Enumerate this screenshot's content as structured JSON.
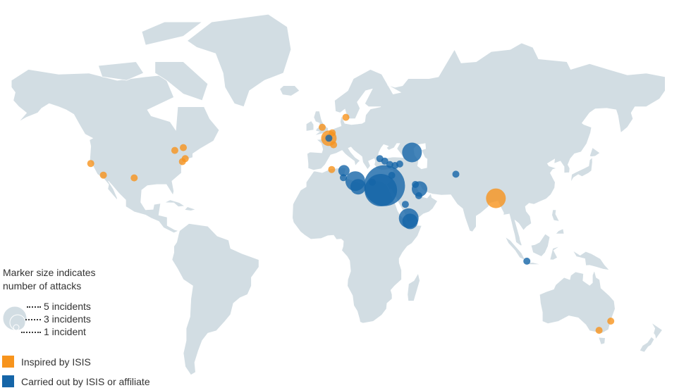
{
  "colors": {
    "land": "#d2dde3",
    "border": "#ffffff",
    "inspired": "#f7941d",
    "carried_out": "#1565a8"
  },
  "legend": {
    "size_title_line1": "Marker size indicates",
    "size_title_line2": "number of attacks",
    "sizes": [
      {
        "incidents": 5,
        "label": "5 incidents"
      },
      {
        "incidents": 3,
        "label": "3 incidents"
      },
      {
        "incidents": 1,
        "label": "1 incident"
      }
    ],
    "types": [
      {
        "key": "inspired",
        "label": "Inspired by ISIS"
      },
      {
        "key": "carried_out",
        "label": "Carried out by ISIS or affiliate"
      }
    ]
  },
  "markers": [
    {
      "type": "inspired",
      "lat": 39.0,
      "lon": -124.0,
      "incidents": 1
    },
    {
      "type": "inspired",
      "lat": 34.1,
      "lon": -117.3,
      "incidents": 1
    },
    {
      "type": "inspired",
      "lat": 32.9,
      "lon": -101.0,
      "incidents": 1
    },
    {
      "type": "inspired",
      "lat": 44.3,
      "lon": -79.5,
      "incidents": 1
    },
    {
      "type": "inspired",
      "lat": 45.4,
      "lon": -75.0,
      "incidents": 1
    },
    {
      "type": "inspired",
      "lat": 41.0,
      "lon": -74.0,
      "incidents": 1
    },
    {
      "type": "inspired",
      "lat": 39.8,
      "lon": -75.5,
      "incidents": 1
    },
    {
      "type": "inspired",
      "lat": 53.0,
      "lon": -1.5,
      "incidents": 1
    },
    {
      "type": "inspired",
      "lat": 56.5,
      "lon": 11.0,
      "incidents": 1
    },
    {
      "type": "inspired",
      "lat": 51.0,
      "lon": 3.8,
      "incidents": 1
    },
    {
      "type": "inspired",
      "lat": 49.0,
      "lon": 2.0,
      "incidents": 3
    },
    {
      "type": "inspired",
      "lat": 46.5,
      "lon": 4.5,
      "incidents": 1
    },
    {
      "type": "inspired",
      "lat": 36.5,
      "lon": 3.5,
      "incidents": 1
    },
    {
      "type": "inspired",
      "lat": 23.8,
      "lon": 90.4,
      "incidents": 4
    },
    {
      "type": "inspired",
      "lat": -33.9,
      "lon": 151.2,
      "incidents": 1
    },
    {
      "type": "inspired",
      "lat": -37.8,
      "lon": 145.0,
      "incidents": 1
    },
    {
      "type": "carried_out",
      "lat": 29.5,
      "lon": 31.5,
      "incidents": 9
    },
    {
      "type": "carried_out",
      "lat": 27.5,
      "lon": 29.5,
      "incidents": 7
    },
    {
      "type": "carried_out",
      "lat": 31.5,
      "lon": 16.0,
      "incidents": 4
    },
    {
      "type": "carried_out",
      "lat": 29.0,
      "lon": 17.5,
      "incidents": 3
    },
    {
      "type": "carried_out",
      "lat": 36.0,
      "lon": 10.0,
      "incidents": 2
    },
    {
      "type": "carried_out",
      "lat": 33.0,
      "lon": 9.7,
      "incidents": 1
    },
    {
      "type": "carried_out",
      "lat": 43.5,
      "lon": 46.0,
      "incidents": 4
    },
    {
      "type": "carried_out",
      "lat": 14.5,
      "lon": 44.3,
      "incidents": 4
    },
    {
      "type": "carried_out",
      "lat": 13.0,
      "lon": 45.0,
      "incidents": 3
    },
    {
      "type": "carried_out",
      "lat": 28.0,
      "lon": 50.0,
      "incidents": 3
    },
    {
      "type": "carried_out",
      "lat": 30.0,
      "lon": 47.8,
      "incidents": 1
    },
    {
      "type": "carried_out",
      "lat": 25.0,
      "lon": 49.6,
      "incidents": 1
    },
    {
      "type": "carried_out",
      "lat": 21.0,
      "lon": 42.5,
      "incidents": 1
    },
    {
      "type": "carried_out",
      "lat": 41.0,
      "lon": 29.0,
      "incidents": 1
    },
    {
      "type": "carried_out",
      "lat": 40.0,
      "lon": 31.6,
      "incidents": 1
    },
    {
      "type": "carried_out",
      "lat": 38.6,
      "lon": 34.3,
      "incidents": 1
    },
    {
      "type": "carried_out",
      "lat": 38.2,
      "lon": 37.0,
      "incidents": 1
    },
    {
      "type": "carried_out",
      "lat": 38.8,
      "lon": 39.5,
      "incidents": 1
    },
    {
      "type": "carried_out",
      "lat": 34.0,
      "lon": 35.3,
      "incidents": 1
    },
    {
      "type": "carried_out",
      "lat": 31.0,
      "lon": 25.0,
      "incidents": 1
    },
    {
      "type": "carried_out",
      "lat": 49.0,
      "lon": 2.0,
      "incidents": 1
    },
    {
      "type": "carried_out",
      "lat": 34.5,
      "lon": 69.2,
      "incidents": 1
    },
    {
      "type": "carried_out",
      "lat": -6.2,
      "lon": 106.8,
      "incidents": 1
    }
  ]
}
